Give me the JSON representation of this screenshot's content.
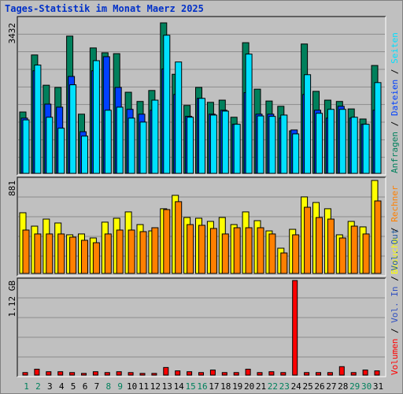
{
  "chart_data": [
    {
      "type": "bar",
      "title": "Tages-Statistik im Monat Maerz 2025",
      "separator": "/",
      "grid": true,
      "ylim": [
        0,
        3432
      ],
      "yticks": [
        3432
      ],
      "series": [
        {
          "name": "Anfragen",
          "color": "#00805c",
          "values": [
            1400,
            2700,
            2010,
            1960,
            3130,
            1350,
            2860,
            2750,
            2730,
            1850,
            1640,
            1890,
            3432,
            2260,
            1550,
            1960,
            1620,
            1670,
            1280,
            2980,
            1920,
            1650,
            1530,
            970,
            2950,
            1870,
            1670,
            1640,
            1470,
            1240,
            2460
          ]
        },
        {
          "name": "Dateien",
          "color": "#0040ff",
          "values": [
            1260,
            2340,
            1580,
            1510,
            2210,
            950,
            2340,
            2660,
            1960,
            1460,
            1350,
            1440,
            2380,
            1800,
            1300,
            1710,
            1350,
            1440,
            1120,
            1840,
            1350,
            1350,
            1260,
            990,
            1800,
            1440,
            1260,
            1530,
            1260,
            1120,
            1440
          ]
        },
        {
          "name": "Seiten",
          "color": "#00e0ff",
          "values": [
            1220,
            2470,
            1280,
            1030,
            2020,
            850,
            2570,
            1440,
            1510,
            1260,
            1170,
            1670,
            3150,
            2540,
            1280,
            1710,
            1330,
            1420,
            1120,
            2720,
            1310,
            1300,
            1330,
            900,
            2250,
            1370,
            1460,
            1460,
            1280,
            1120,
            2070
          ]
        }
      ]
    },
    {
      "type": "bar",
      "grid": true,
      "ylim": [
        0,
        881
      ],
      "yticks": [
        881
      ],
      "series": [
        {
          "name": "Besuche",
          "color": "#ffff00",
          "values": [
            575,
            448,
            515,
            478,
            366,
            374,
            336,
            486,
            523,
            583,
            463,
            403,
            613,
            740,
            530,
            523,
            493,
            530,
            463,
            583,
            500,
            403,
            239,
            418,
            725,
            672,
            613,
            366,
            493,
            441,
            881
          ]
        },
        {
          "name": "Rechner",
          "color": "#ff8000",
          "values": [
            411,
            374,
            374,
            374,
            344,
            314,
            291,
            374,
            411,
            411,
            396,
            433,
            605,
            680,
            463,
            456,
            426,
            374,
            433,
            433,
            433,
            374,
            194,
            366,
            627,
            530,
            515,
            336,
            448,
            374,
            687
          ]
        }
      ]
    },
    {
      "type": "bar",
      "grid": true,
      "ylim": [
        0,
        1.12
      ],
      "yticks": [
        {
          "value": 1.12,
          "label": "1.12 GB"
        }
      ],
      "categories": [
        "1",
        "2",
        "3",
        "4",
        "5",
        "6",
        "7",
        "8",
        "9",
        "10",
        "11",
        "12",
        "13",
        "14",
        "15",
        "16",
        "17",
        "18",
        "19",
        "20",
        "21",
        "22",
        "23",
        "24",
        "25",
        "26",
        "27",
        "28",
        "29",
        "30",
        "31"
      ],
      "category_colors": [
        "#00805c",
        "#00805c",
        "#000000",
        "#000000",
        "#000000",
        "#000000",
        "#000000",
        "#00805c",
        "#00805c",
        "#000000",
        "#000000",
        "#000000",
        "#000000",
        "#000000",
        "#00805c",
        "#00805c",
        "#000000",
        "#000000",
        "#000000",
        "#000000",
        "#000000",
        "#00805c",
        "#00805c",
        "#000000",
        "#000000",
        "#000000",
        "#000000",
        "#000000",
        "#00805c",
        "#00805c",
        "#000000"
      ],
      "series": [
        {
          "name": "Volumen",
          "color": "#ff0000",
          "values": [
            0.03,
            0.07,
            0.04,
            0.04,
            0.03,
            0.02,
            0.04,
            0.03,
            0.04,
            0.03,
            0.02,
            0.02,
            0.09,
            0.05,
            0.04,
            0.03,
            0.06,
            0.03,
            0.03,
            0.07,
            0.03,
            0.04,
            0.03,
            1.12,
            0.03,
            0.03,
            0.03,
            0.1,
            0.03,
            0.06,
            0.05
          ]
        },
        {
          "name": "Vol. In",
          "color": "#3050c0",
          "values": [
            null,
            null,
            null,
            null,
            null,
            null,
            null,
            null,
            null,
            null,
            null,
            null,
            null,
            null,
            null,
            null,
            null,
            null,
            null,
            null,
            null,
            null,
            null,
            null,
            null,
            null,
            null,
            null,
            null,
            null,
            null
          ]
        },
        {
          "name": "Vol. Out",
          "color": "#2860a0",
          "values": [
            null,
            null,
            null,
            null,
            null,
            null,
            null,
            null,
            null,
            null,
            null,
            null,
            null,
            null,
            null,
            null,
            null,
            null,
            null,
            null,
            null,
            null,
            null,
            null,
            null,
            null,
            null,
            null,
            null,
            null,
            null
          ]
        }
      ]
    }
  ]
}
